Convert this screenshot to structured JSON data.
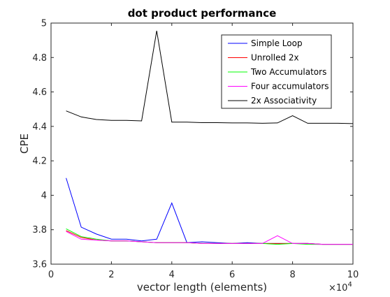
{
  "chart_data": {
    "type": "line",
    "title": "dot product performance",
    "xlabel": "vector length (elements)",
    "ylabel": "CPE",
    "x_exponent_base": "×10",
    "x_exponent_power": "4",
    "xlim": [
      0,
      100000
    ],
    "ylim": [
      3.6,
      5
    ],
    "x_tick_values": [
      0,
      20000,
      40000,
      60000,
      80000,
      100000
    ],
    "x_tick_labels": [
      "0",
      "2",
      "4",
      "6",
      "8",
      "10"
    ],
    "y_tick_values": [
      3.6,
      3.8,
      4,
      4.2,
      4.4,
      4.6,
      4.8,
      5
    ],
    "y_tick_labels": [
      "3.6",
      "3.8",
      "4",
      "4.2",
      "4.4",
      "4.6",
      "4.8",
      "5"
    ],
    "grid": false,
    "legend_position": "top-right",
    "x": [
      5000,
      10000,
      15000,
      20000,
      25000,
      30000,
      35000,
      40000,
      45000,
      50000,
      55000,
      60000,
      65000,
      70000,
      75000,
      80000,
      85000,
      90000,
      95000,
      100000
    ],
    "series": [
      {
        "name": "Simple Loop",
        "color": "#0000ff",
        "values": [
          4.1,
          3.815,
          3.775,
          3.745,
          3.745,
          3.735,
          3.745,
          3.955,
          3.725,
          3.73,
          3.725,
          3.72,
          3.725,
          3.72,
          3.72,
          3.72,
          3.72,
          3.715,
          3.715,
          3.715
        ]
      },
      {
        "name": "Unrolled 2x",
        "color": "#ff0000",
        "values": [
          3.795,
          3.755,
          3.74,
          3.735,
          3.735,
          3.73,
          3.725,
          3.725,
          3.725,
          3.72,
          3.72,
          3.72,
          3.72,
          3.72,
          3.72,
          3.72,
          3.72,
          3.715,
          3.715,
          3.715
        ]
      },
      {
        "name": "Two Accumulators",
        "color": "#00ff00",
        "values": [
          3.805,
          3.76,
          3.745,
          3.735,
          3.735,
          3.73,
          3.725,
          3.725,
          3.725,
          3.72,
          3.72,
          3.72,
          3.72,
          3.72,
          3.715,
          3.72,
          3.715,
          3.715,
          3.715,
          3.715
        ]
      },
      {
        "name": "Four accumulators",
        "color": "#ff00ff",
        "values": [
          3.79,
          3.745,
          3.74,
          3.735,
          3.735,
          3.73,
          3.725,
          3.725,
          3.725,
          3.72,
          3.72,
          3.72,
          3.72,
          3.72,
          3.765,
          3.72,
          3.72,
          3.715,
          3.715,
          3.715
        ]
      },
      {
        "name": "2x Associativity",
        "color": "#000000",
        "values": [
          4.49,
          4.455,
          4.44,
          4.435,
          4.435,
          4.432,
          4.955,
          4.425,
          4.425,
          4.422,
          4.422,
          4.42,
          4.42,
          4.418,
          4.42,
          4.462,
          4.418,
          4.418,
          4.418,
          4.416
        ]
      }
    ]
  }
}
